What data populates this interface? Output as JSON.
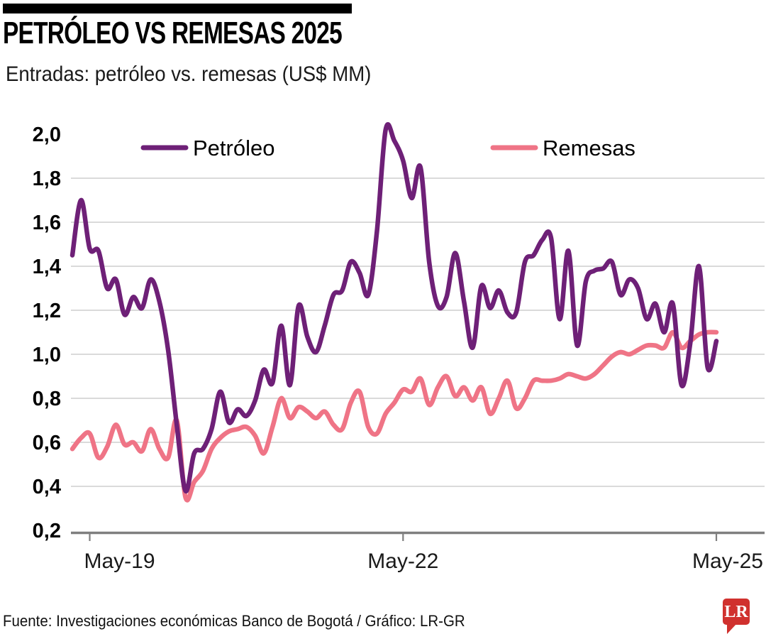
{
  "header": {
    "title": "PETRÓLEO VS REMESAS 2025",
    "subtitle": "Entradas: petróleo vs. remesas (US$ MM)"
  },
  "footer": {
    "source_text": "Fuente: Investigaciones económicas Banco de Bogotá / Gráfico: LR-GR",
    "logo": {
      "text": "LR",
      "background": "#d0312e",
      "text_color": "#ffffff"
    }
  },
  "chart_data": {
    "type": "line",
    "title": "PETRÓLEO VS REMESAS 2025",
    "subtitle": "Entradas: petróleo vs. remesas (US$ MM)",
    "xlabel": "",
    "ylabel": "US$ MM",
    "ylim": [
      0.2,
      2.0
    ],
    "grid": "horizontal",
    "legend_position": "top",
    "axis_color": "#7f7f7f",
    "grid_color": "#cdcdcd",
    "text_color": "#1a1a1a",
    "y_tick_labels": [
      "2,0",
      "1,8",
      "1,6",
      "1,4",
      "1,2",
      "1,0",
      "0,8",
      "0,6",
      "0,4",
      "0,2"
    ],
    "x_tick_labels": [
      "May-19",
      "May-22",
      "May-25"
    ],
    "x_tick_indices": [
      2,
      38,
      74
    ],
    "n_points": 75,
    "series": [
      {
        "name": "Petróleo",
        "color": "#6e2077",
        "values": [
          1.45,
          1.7,
          1.48,
          1.47,
          1.3,
          1.34,
          1.18,
          1.26,
          1.21,
          1.34,
          1.24,
          1.02,
          0.68,
          0.38,
          0.55,
          0.57,
          0.66,
          0.83,
          0.69,
          0.75,
          0.72,
          0.79,
          0.93,
          0.87,
          1.13,
          0.86,
          1.22,
          1.08,
          1.01,
          1.13,
          1.27,
          1.29,
          1.42,
          1.37,
          1.27,
          1.56,
          2.02,
          1.97,
          1.88,
          1.71,
          1.85,
          1.42,
          1.22,
          1.26,
          1.46,
          1.24,
          1.03,
          1.31,
          1.21,
          1.29,
          1.19,
          1.19,
          1.42,
          1.45,
          1.52,
          1.53,
          1.16,
          1.47,
          1.04,
          1.33,
          1.38,
          1.39,
          1.42,
          1.27,
          1.34,
          1.3,
          1.16,
          1.23,
          1.1,
          1.23,
          0.86,
          1.05,
          1.4,
          0.94,
          1.06
        ]
      },
      {
        "name": "Remesas",
        "color": "#ef7486",
        "values": [
          0.57,
          0.62,
          0.64,
          0.53,
          0.58,
          0.68,
          0.59,
          0.6,
          0.56,
          0.66,
          0.57,
          0.53,
          0.7,
          0.35,
          0.42,
          0.47,
          0.57,
          0.62,
          0.65,
          0.66,
          0.67,
          0.63,
          0.55,
          0.67,
          0.8,
          0.71,
          0.76,
          0.74,
          0.71,
          0.74,
          0.68,
          0.66,
          0.78,
          0.83,
          0.67,
          0.64,
          0.73,
          0.78,
          0.84,
          0.83,
          0.89,
          0.77,
          0.85,
          0.9,
          0.81,
          0.85,
          0.79,
          0.85,
          0.73,
          0.8,
          0.88,
          0.755,
          0.8,
          0.88,
          0.88,
          0.88,
          0.89,
          0.91,
          0.9,
          0.89,
          0.91,
          0.95,
          0.99,
          1.01,
          1.0,
          1.02,
          1.04,
          1.04,
          1.03,
          1.1,
          1.03,
          1.06,
          1.09,
          1.1,
          1.1
        ]
      }
    ]
  }
}
